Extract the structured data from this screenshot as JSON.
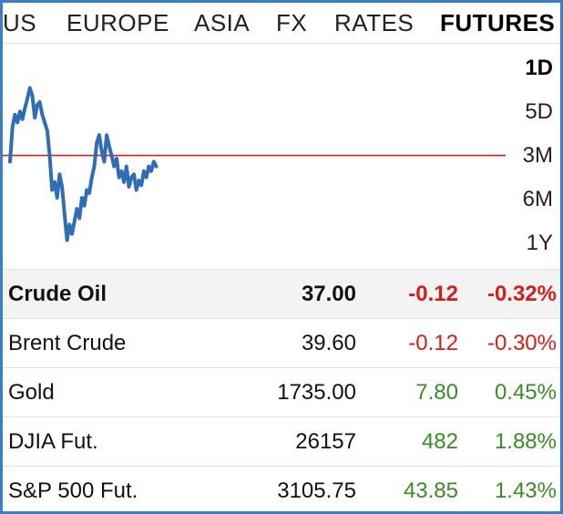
{
  "tabs": [
    {
      "label": "US",
      "active": false
    },
    {
      "label": "EUROPE",
      "active": false
    },
    {
      "label": "ASIA",
      "active": false
    },
    {
      "label": "FX",
      "active": false
    },
    {
      "label": "RATES",
      "active": false
    },
    {
      "label": "FUTURES",
      "active": true
    }
  ],
  "ranges": [
    {
      "label": "1D",
      "active": true
    },
    {
      "label": "5D",
      "active": false
    },
    {
      "label": "3M",
      "active": false
    },
    {
      "label": "6M",
      "active": false
    },
    {
      "label": "1Y",
      "active": false
    }
  ],
  "chart_data": {
    "type": "line",
    "reference_line_value": 37.12,
    "ylim": [
      36.45,
      37.75
    ],
    "x_fraction_range": [
      0,
      1
    ],
    "series": [
      {
        "color": "#2f6db5",
        "x": [
          0,
          0.005,
          0.01,
          0.015,
          0.02,
          0.025,
          0.03,
          0.035,
          0.04,
          0.045,
          0.05,
          0.055,
          0.06,
          0.065,
          0.07,
          0.075,
          0.08,
          0.085,
          0.09,
          0.095,
          0.1,
          0.105,
          0.11,
          0.115,
          0.12,
          0.125,
          0.13,
          0.135,
          0.14,
          0.145,
          0.15,
          0.155,
          0.16,
          0.165,
          0.17,
          0.175,
          0.18,
          0.185,
          0.19,
          0.195,
          0.2,
          0.205,
          0.21,
          0.215,
          0.22,
          0.225,
          0.23,
          0.235,
          0.24,
          0.245,
          0.25,
          0.255,
          0.26,
          0.265,
          0.27,
          0.275,
          0.28,
          0.285,
          0.29,
          0.295
        ],
        "y": [
          37.08,
          37.3,
          37.38,
          37.33,
          37.4,
          37.35,
          37.42,
          37.48,
          37.55,
          37.5,
          37.36,
          37.44,
          37.46,
          37.38,
          37.33,
          37.28,
          37.12,
          36.9,
          36.95,
          36.85,
          37.0,
          36.92,
          36.75,
          36.58,
          36.68,
          36.62,
          36.7,
          36.78,
          36.72,
          36.85,
          36.8,
          36.9,
          36.88,
          36.98,
          37.05,
          37.2,
          37.25,
          37.15,
          37.08,
          37.25,
          37.18,
          37.12,
          37.05,
          37.1,
          36.98,
          37.02,
          36.95,
          37.05,
          36.92,
          36.98,
          37.0,
          36.9,
          36.96,
          36.93,
          37.02,
          36.98,
          37.05,
          37.02,
          37.08,
          37.05
        ]
      }
    ]
  },
  "quotes": [
    {
      "name": "Crude Oil",
      "price": "37.00",
      "change": "-0.12",
      "pct": "-0.32%",
      "dir": "neg",
      "selected": true
    },
    {
      "name": "Brent Crude",
      "price": "39.60",
      "change": "-0.12",
      "pct": "-0.30%",
      "dir": "neg",
      "selected": false
    },
    {
      "name": "Gold",
      "price": "1735.00",
      "change": "7.80",
      "pct": "0.45%",
      "dir": "pos",
      "selected": false
    },
    {
      "name": "DJIA Fut.",
      "price": "26157",
      "change": "482",
      "pct": "1.88%",
      "dir": "pos",
      "selected": false
    },
    {
      "name": "S&P 500 Fut.",
      "price": "3105.75",
      "change": "43.85",
      "pct": "1.43%",
      "dir": "pos",
      "selected": false
    }
  ],
  "colors": {
    "border": "#3d7fc6",
    "line": "#2f6db5",
    "reference": "#d0201a",
    "negative": "#d0201a",
    "positive": "#3c8a25"
  }
}
